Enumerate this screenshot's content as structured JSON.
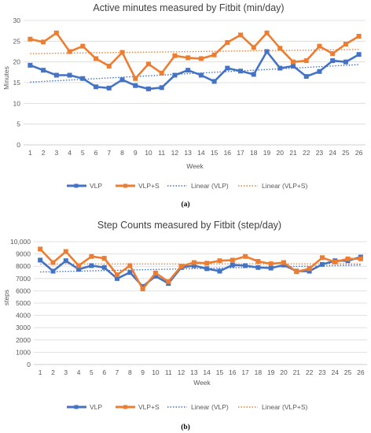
{
  "chart_data": [
    {
      "type": "line",
      "title": "Active minutes measured by Fitbit (min/day)",
      "xlabel": "Week",
      "ylabel": "Minutes",
      "ylim": [
        0,
        30
      ],
      "yticks": [
        "0",
        "5",
        "10",
        "15",
        "20",
        "25",
        "30"
      ],
      "categories": [
        "1",
        "2",
        "3",
        "4",
        "5",
        "6",
        "7",
        "8",
        "9",
        "10",
        "11",
        "12",
        "13",
        "14",
        "15",
        "16",
        "17",
        "18",
        "19",
        "20",
        "21",
        "22",
        "23",
        "24",
        "25",
        "26"
      ],
      "series": [
        {
          "name": "VLP",
          "color": "#4472c4",
          "marker": "square",
          "values": [
            19.2,
            18.0,
            16.8,
            16.8,
            16.0,
            14.0,
            13.7,
            15.7,
            14.3,
            13.5,
            13.8,
            16.8,
            18.0,
            16.8,
            15.3,
            18.5,
            17.8,
            17.0,
            22.5,
            18.5,
            19.0,
            16.5,
            17.7,
            20.3,
            20.0,
            21.8
          ]
        },
        {
          "name": "VLP+S",
          "color": "#ed7d31",
          "marker": "square",
          "values": [
            25.5,
            24.8,
            27.0,
            22.5,
            23.8,
            20.8,
            19.0,
            22.3,
            16.0,
            19.5,
            17.3,
            21.5,
            21.0,
            20.8,
            21.7,
            24.7,
            26.5,
            23.5,
            27.0,
            23.3,
            20.0,
            20.3,
            23.8,
            22.0,
            24.3,
            26.2
          ]
        },
        {
          "name": "Linear (VLP)",
          "color": "#4472c4",
          "style": "dotted-trendline",
          "fit": "linear",
          "of": "VLP"
        },
        {
          "name": "Linear (VLP+S)",
          "color": "#ed7d31",
          "style": "dotted-trendline",
          "fit": "linear",
          "of": "VLP+S"
        }
      ],
      "legend_placement": "bottom",
      "grid": true,
      "caption": "(a)"
    },
    {
      "type": "line",
      "title": "Step Counts measured by Fitbit (step/day)",
      "xlabel": "Week",
      "ylabel": "steps",
      "ylim": [
        0,
        10000
      ],
      "yticks": [
        "0",
        "1000",
        "2000",
        "3000",
        "4000",
        "5000",
        "6000",
        "7000",
        "8000",
        "9000",
        "10,000"
      ],
      "categories": [
        "1",
        "2",
        "3",
        "4",
        "5",
        "6",
        "7",
        "8",
        "9",
        "10",
        "11",
        "12",
        "13",
        "14",
        "15",
        "16",
        "17",
        "18",
        "19",
        "20",
        "21",
        "22",
        "23",
        "24",
        "25",
        "26"
      ],
      "series": [
        {
          "name": "VLP",
          "color": "#4472c4",
          "marker": "square",
          "values": [
            8500,
            7600,
            8450,
            7750,
            8050,
            7900,
            7000,
            7500,
            6350,
            7200,
            6600,
            7900,
            8050,
            7800,
            7600,
            8100,
            8050,
            7900,
            7850,
            8100,
            7600,
            7600,
            8150,
            8450,
            8450,
            8750
          ]
        },
        {
          "name": "VLP+S",
          "color": "#ed7d31",
          "marker": "square",
          "values": [
            9400,
            8300,
            9200,
            8050,
            8800,
            8650,
            7300,
            8050,
            6150,
            7450,
            6750,
            8000,
            8300,
            8250,
            8450,
            8500,
            8800,
            8400,
            8200,
            8300,
            7550,
            7800,
            8700,
            8350,
            8600,
            8600
          ]
        },
        {
          "name": "Linear (VLP)",
          "color": "#4472c4",
          "style": "dotted-trendline",
          "fit": "linear",
          "of": "VLP"
        },
        {
          "name": "Linear (VLP+S)",
          "color": "#ed7d31",
          "style": "dotted-trendline",
          "fit": "linear",
          "of": "VLP+S"
        }
      ],
      "legend_placement": "bottom",
      "grid": true,
      "caption": "(b)"
    }
  ]
}
